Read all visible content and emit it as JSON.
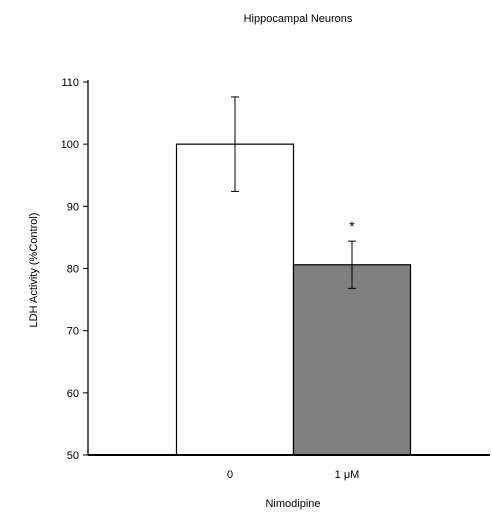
{
  "chart_data": {
    "type": "bar",
    "title": "Hippocampal Neurons",
    "xlabel": "Nimodipine",
    "ylabel": "LDH Activity (%Control)",
    "ylim": [
      50,
      110
    ],
    "yticks": [
      "50",
      "60",
      "70",
      "80",
      "90",
      "100",
      "110"
    ],
    "categories": [
      "0",
      "1 μM"
    ],
    "values": [
      100,
      80.6
    ],
    "errors": [
      7.6,
      3.8
    ],
    "bar_colors": [
      "#ffffff",
      "#808080"
    ],
    "annotations": [
      "",
      "*"
    ],
    "grid": false,
    "legend": "none"
  }
}
